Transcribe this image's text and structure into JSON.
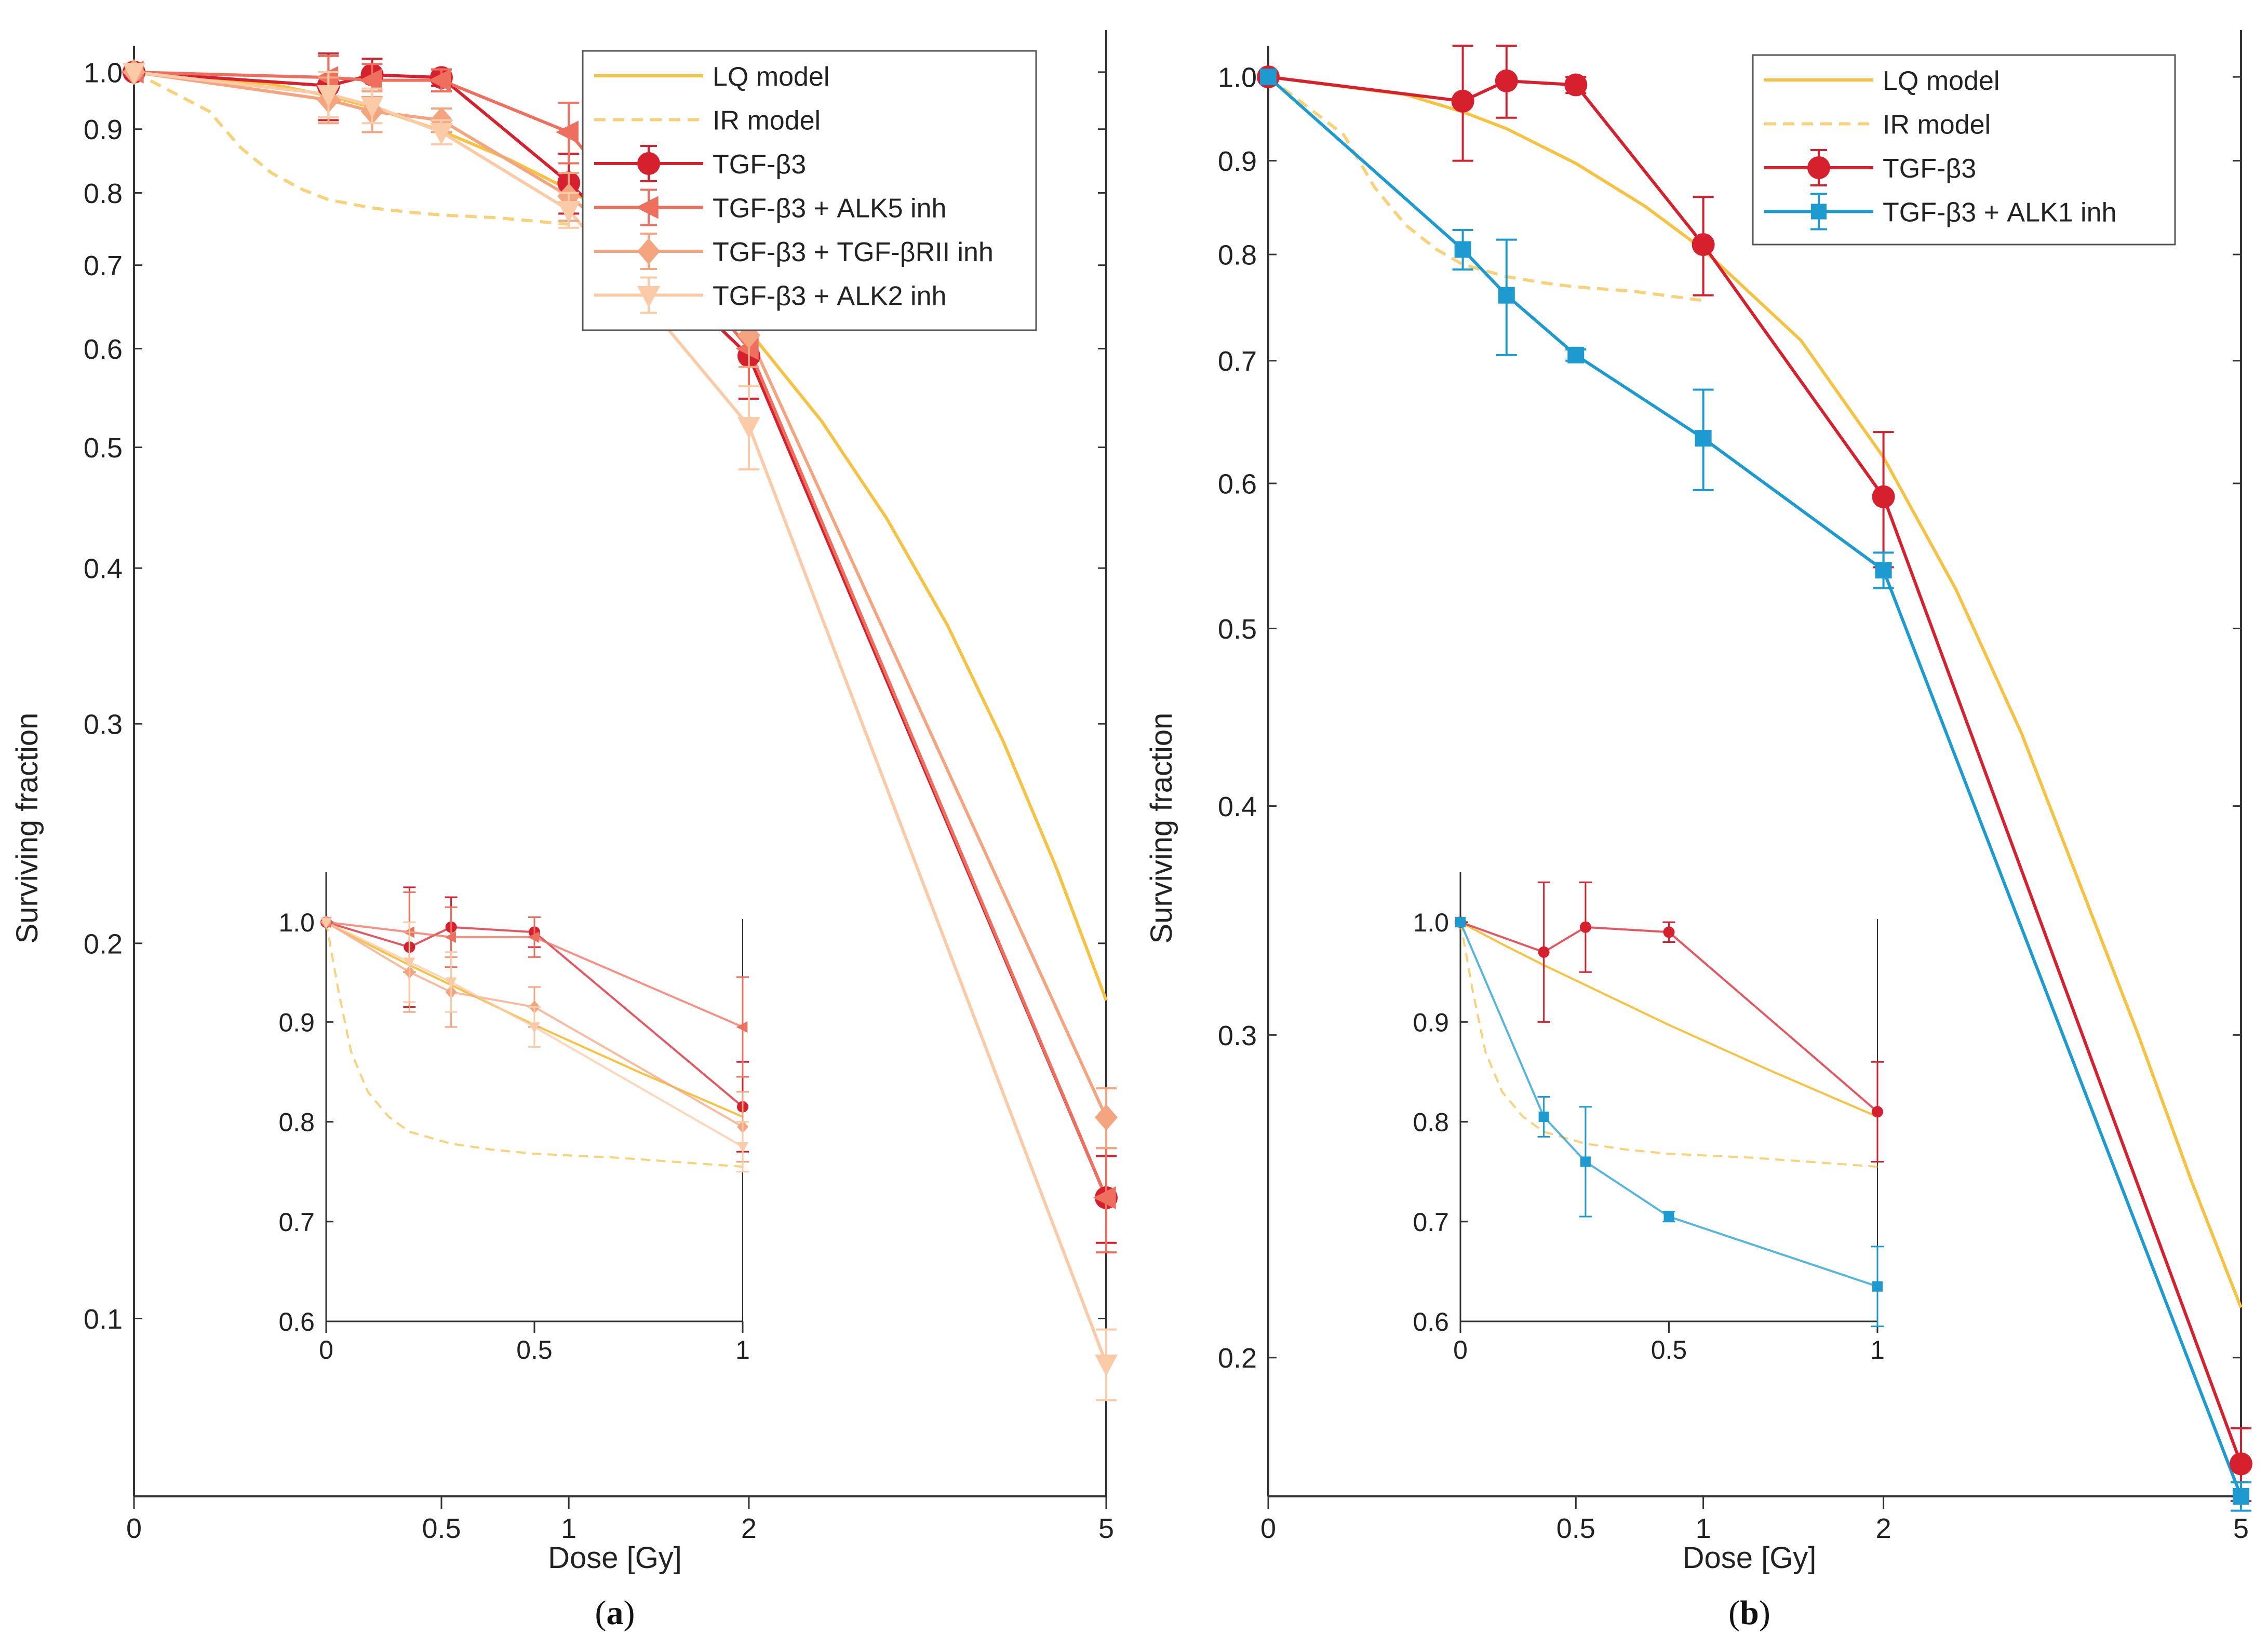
{
  "figure": {
    "panels": [
      {
        "id": "a",
        "label": "a",
        "chart_data": {
          "type": "line",
          "title": "",
          "xlabel": "Dose [Gy]",
          "ylabel": "Surviving fraction",
          "xscale": "sqrt",
          "yscale": "log",
          "xlim": [
            0,
            5
          ],
          "ylim": [
            0.072,
            1.05
          ],
          "xticks": [
            0,
            0.5,
            1,
            2,
            5
          ],
          "xtick_labels": [
            "0",
            "0.5",
            "1",
            "2",
            "5"
          ],
          "yticks": [
            0.1,
            0.2,
            0.3,
            0.4,
            0.5,
            0.6,
            0.7,
            0.8,
            0.9,
            1.0
          ],
          "ytick_labels": [
            "0.1",
            "0.2",
            "0.3",
            "0.4",
            "0.5",
            "0.6",
            "0.7",
            "0.8",
            "0.9",
            "1.0"
          ],
          "legend_position": "top-right",
          "series": [
            {
              "name": "LQ model",
              "kind": "model",
              "color": "#f5c242",
              "dash": "solid",
              "x": [
                0,
                0.1,
                0.2,
                0.3,
                0.5,
                0.75,
                1,
                1.5,
                2,
                2.5,
                3,
                3.5,
                4,
                4.5,
                5
              ],
              "y": [
                1.0,
                0.978,
                0.957,
                0.937,
                0.897,
                0.85,
                0.805,
                0.718,
                0.62,
                0.525,
                0.438,
                0.36,
                0.29,
                0.23,
                0.18
              ]
            },
            {
              "name": "IR model",
              "kind": "model",
              "color": "#f8d27a",
              "dash": "dashed",
              "x": [
                0,
                0.03,
                0.06,
                0.1,
                0.15,
                0.2,
                0.3,
                0.4,
                0.5,
                0.7,
                1
              ],
              "y": [
                1.0,
                0.93,
                0.87,
                0.83,
                0.805,
                0.79,
                0.778,
                0.772,
                0.768,
                0.764,
                0.755
              ]
            },
            {
              "name": "TGF-β3",
              "kind": "data",
              "color": "#d7202e",
              "marker": "circle",
              "x": [
                0,
                0.2,
                0.3,
                0.5,
                1,
                2,
                5
              ],
              "y": [
                1.0,
                0.975,
                0.995,
                0.99,
                0.815,
                0.592,
                0.125
              ],
              "err": [
                0,
                0.06,
                0.03,
                0.015,
                0.045,
                0.045,
                0.01
              ]
            },
            {
              "name": "TGF-β3 + ALK5 inh",
              "kind": "data",
              "color": "#ee6f5e",
              "marker": "triangle-left",
              "x": [
                0,
                0.2,
                0.3,
                0.5,
                1,
                2,
                5
              ],
              "y": [
                1.0,
                0.99,
                0.985,
                0.985,
                0.895,
                0.6,
                0.125
              ],
              "err": [
                0,
                0.04,
                0.03,
                0.02,
                0.05,
                0.04,
                0.012
              ]
            },
            {
              "name": "TGF-β3 + TGF-βRII inh",
              "kind": "data",
              "color": "#f4a47f",
              "marker": "diamond",
              "x": [
                0,
                0.2,
                0.3,
                0.5,
                1,
                2,
                5
              ],
              "y": [
                1.0,
                0.95,
                0.93,
                0.915,
                0.795,
                0.615,
                0.145
              ],
              "err": [
                0,
                0.04,
                0.035,
                0.02,
                0.035,
                0.035,
                0.008
              ]
            },
            {
              "name": "TGF-β3 + ALK2 inh",
              "kind": "data",
              "color": "#fbcaa6",
              "marker": "triangle-down",
              "x": [
                0,
                0.2,
                0.3,
                0.5,
                1,
                2,
                5
              ],
              "y": [
                1.0,
                0.96,
                0.94,
                0.895,
                0.775,
                0.52,
                0.092
              ],
              "err": [
                0,
                0.04,
                0.03,
                0.02,
                0.025,
                0.04,
                0.006
              ]
            }
          ]
        },
        "inset": {
          "xlim": [
            0,
            1
          ],
          "ylim": [
            0.6,
            1.05
          ],
          "xticks": [
            0,
            0.5,
            1
          ],
          "xtick_labels": [
            "0",
            "0.5",
            "1"
          ],
          "yticks": [
            0.6,
            0.7,
            0.8,
            0.9,
            1.0
          ],
          "ytick_labels": [
            "0.6",
            "0.7",
            "0.8",
            "0.9",
            "1.0"
          ]
        }
      },
      {
        "id": "b",
        "label": "b",
        "chart_data": {
          "type": "line",
          "title": "",
          "xlabel": "Dose [Gy]",
          "ylabel": "Surviving fraction",
          "xscale": "sqrt",
          "yscale": "log",
          "xlim": [
            0,
            5
          ],
          "ylim": [
            0.168,
            1.04
          ],
          "xticks": [
            0,
            0.5,
            1,
            2,
            5
          ],
          "xtick_labels": [
            "0",
            "0.5",
            "1",
            "2",
            "5"
          ],
          "yticks": [
            0.2,
            0.3,
            0.4,
            0.5,
            0.6,
            0.7,
            0.8,
            0.9,
            1.0
          ],
          "ytick_labels": [
            "0.2",
            "0.3",
            "0.4",
            "0.5",
            "0.6",
            "0.7",
            "0.8",
            "0.9",
            "1.0"
          ],
          "legend_position": "top-right",
          "series": [
            {
              "name": "LQ model",
              "kind": "model",
              "color": "#f5c242",
              "dash": "solid",
              "x": [
                0,
                0.1,
                0.2,
                0.3,
                0.5,
                0.75,
                1,
                1.5,
                2,
                2.5,
                3,
                3.5,
                4,
                4.5,
                5
              ],
              "y": [
                1.0,
                0.978,
                0.957,
                0.937,
                0.897,
                0.85,
                0.805,
                0.718,
                0.62,
                0.525,
                0.438,
                0.36,
                0.3,
                0.25,
                0.213
              ]
            },
            {
              "name": "IR model",
              "kind": "model",
              "color": "#f8d27a",
              "dash": "dashed",
              "x": [
                0,
                0.03,
                0.06,
                0.1,
                0.15,
                0.2,
                0.3,
                0.4,
                0.5,
                0.7,
                1
              ],
              "y": [
                1.0,
                0.93,
                0.87,
                0.83,
                0.805,
                0.79,
                0.778,
                0.772,
                0.768,
                0.764,
                0.755
              ]
            },
            {
              "name": "TGF-β3",
              "kind": "data",
              "color": "#d7202e",
              "marker": "circle",
              "x": [
                0,
                0.2,
                0.3,
                0.5,
                1,
                2,
                5
              ],
              "y": [
                1.0,
                0.97,
                0.995,
                0.99,
                0.81,
                0.59,
                0.175
              ],
              "err": [
                0,
                0.07,
                0.045,
                0.01,
                0.05,
                0.05,
                0.008
              ]
            },
            {
              "name": "TGF-β3  + ALK1 inh",
              "kind": "data",
              "color": "#1d9bd1",
              "marker": "square",
              "x": [
                0,
                0.2,
                0.3,
                0.5,
                1,
                2,
                5
              ],
              "y": [
                1.0,
                0.805,
                0.76,
                0.705,
                0.635,
                0.538,
                0.168
              ],
              "err": [
                0,
                0.02,
                0.055,
                0.005,
                0.04,
                0.012,
                0.003
              ]
            }
          ]
        },
        "inset": {
          "xlim": [
            0,
            1
          ],
          "ylim": [
            0.6,
            1.05
          ],
          "xticks": [
            0,
            0.5,
            1
          ],
          "xtick_labels": [
            "0",
            "0.5",
            "1"
          ],
          "yticks": [
            0.6,
            0.7,
            0.8,
            0.9,
            1.0
          ],
          "ytick_labels": [
            "0.6",
            "0.7",
            "0.8",
            "0.9",
            "1.0"
          ]
        }
      }
    ]
  }
}
